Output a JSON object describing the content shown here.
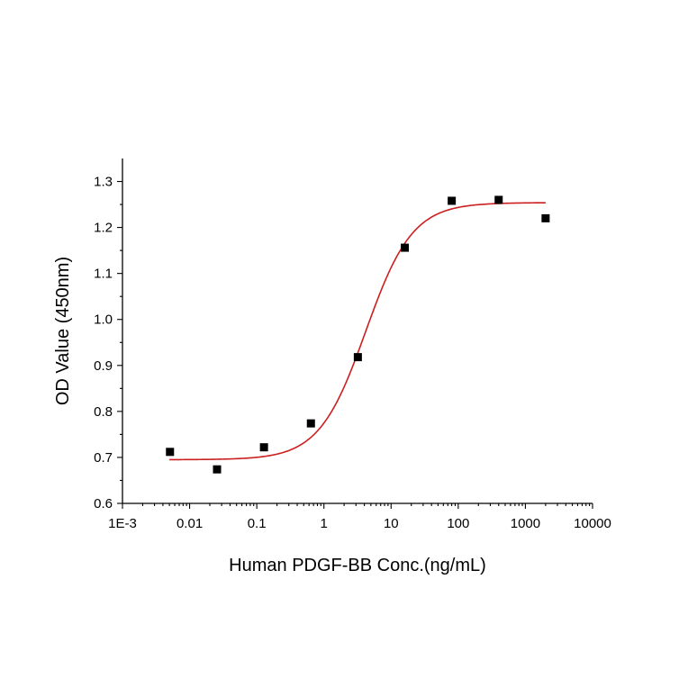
{
  "chart_data": {
    "type": "scatter",
    "title": "",
    "xlabel": "Human PDGF-BB Conc.(ng/mL)",
    "ylabel": "OD Value (450nm)",
    "x_scale": "log",
    "xlim": [
      0.001,
      10000
    ],
    "ylim": [
      0.6,
      1.35
    ],
    "x_ticks": [
      {
        "value": 0.001,
        "label": "1E-3"
      },
      {
        "value": 0.01,
        "label": "0.01"
      },
      {
        "value": 0.1,
        "label": "0.1"
      },
      {
        "value": 1,
        "label": "1"
      },
      {
        "value": 10,
        "label": "10"
      },
      {
        "value": 100,
        "label": "100"
      },
      {
        "value": 1000,
        "label": "1000"
      },
      {
        "value": 10000,
        "label": "10000"
      }
    ],
    "y_ticks": [
      {
        "value": 0.6,
        "label": "0.6"
      },
      {
        "value": 0.7,
        "label": "0.7"
      },
      {
        "value": 0.8,
        "label": "0.8"
      },
      {
        "value": 0.9,
        "label": "0.9"
      },
      {
        "value": 1.0,
        "label": "1.0"
      },
      {
        "value": 1.1,
        "label": "1.1"
      },
      {
        "value": 1.2,
        "label": "1.2"
      },
      {
        "value": 1.3,
        "label": "1.3"
      }
    ],
    "grid": false,
    "series": [
      {
        "type": "scatter",
        "marker": "square",
        "color": "#000000",
        "x": [
          0.0051,
          0.0256,
          0.128,
          0.64,
          3.2,
          16,
          80,
          400,
          2000
        ],
        "y": [
          0.712,
          0.674,
          0.722,
          0.774,
          0.918,
          1.156,
          1.258,
          1.26,
          1.22
        ]
      },
      {
        "type": "line",
        "model": "four-parameter logistic fit",
        "color": "#cc1f1f",
        "bottom": 0.695,
        "top": 1.254,
        "ec50": 4.2,
        "hill": 1.25,
        "x_range": [
          0.005,
          2000
        ]
      }
    ]
  }
}
